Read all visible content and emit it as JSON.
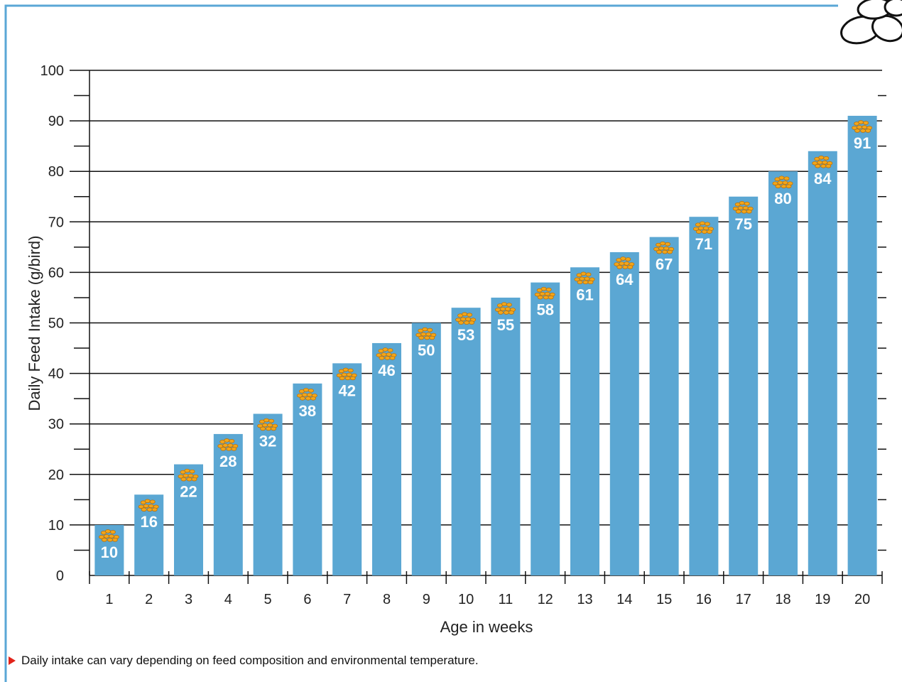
{
  "colors": {
    "frame": "#5aa7d6",
    "bar": "#5ba7d3",
    "bar_label": "#ffffff",
    "feed_icon": "#f2a51a",
    "grid": "#111111",
    "footnote_marker": "#e2231a"
  },
  "chart_data": {
    "type": "bar",
    "title": "",
    "xlabel": "Age in weeks",
    "ylabel": "Daily Feed Intake (g/bird)",
    "ylim": [
      0,
      100
    ],
    "yticks": [
      0,
      10,
      20,
      30,
      40,
      50,
      60,
      70,
      80,
      90,
      100
    ],
    "grid": true,
    "categories": [
      "1",
      "2",
      "3",
      "4",
      "5",
      "6",
      "7",
      "8",
      "9",
      "10",
      "11",
      "12",
      "13",
      "14",
      "15",
      "16",
      "17",
      "18",
      "19",
      "20"
    ],
    "values": [
      10,
      16,
      22,
      28,
      32,
      38,
      42,
      46,
      50,
      53,
      55,
      58,
      61,
      64,
      67,
      71,
      75,
      80,
      84,
      91
    ],
    "bar_icon": "feed-grain-icon",
    "decoration_icon": "corner-stones-icon"
  },
  "footnote": {
    "marker_icon": "triangle-bullet-icon",
    "text": "Daily intake can vary depending on feed composition and environmental temperature."
  }
}
